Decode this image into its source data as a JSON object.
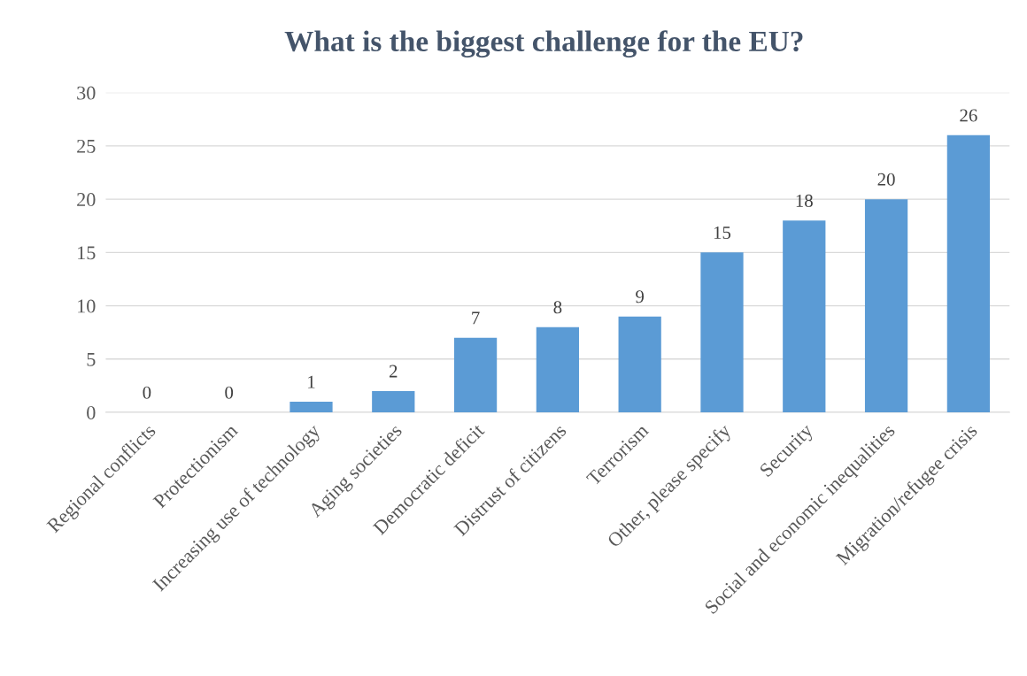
{
  "chart_data": {
    "type": "bar",
    "title": "What is the biggest challenge for the EU?",
    "categories": [
      "Regional conflicts",
      "Protectionism",
      "Increasing use of technology",
      "Aging societies",
      "Democratic deficit",
      "Distrust of citizens",
      "Terrorism",
      "Other, please specify",
      "Security",
      "Social and economic inequalities",
      "Migration/refugee crisis"
    ],
    "values": [
      0,
      0,
      1,
      2,
      7,
      8,
      9,
      15,
      18,
      20,
      26
    ],
    "color": "#5b9bd5",
    "ylim": [
      0,
      30
    ],
    "yticks": [
      0,
      5,
      10,
      15,
      20,
      25,
      30
    ],
    "grid": "y",
    "data_labels": true
  }
}
